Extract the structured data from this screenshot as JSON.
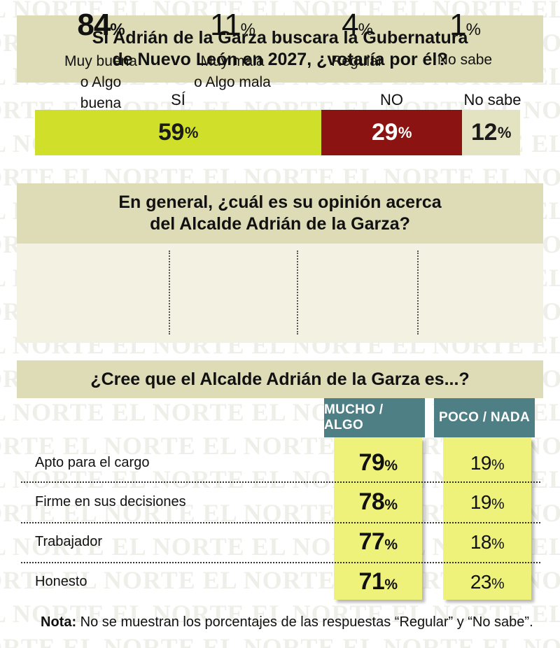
{
  "watermark": "EL NORTE",
  "q1": {
    "line1": "Si Adrián de la Garza buscara la Gubernatura",
    "line2": "de Nuevo León en 2027, ¿votaría por él?",
    "pct_symbol": "%"
  },
  "q2": {
    "line1": "En general, ¿cuál es su opinión acerca",
    "line2": "del Alcalde Adrián de la Garza?",
    "items": [
      {
        "value": "84",
        "line1": "Muy buena",
        "line2": "o Algo buena"
      },
      {
        "value": "11",
        "line1": "Muy mala",
        "line2": "o Algo mala"
      },
      {
        "value": "4",
        "line1": "Regular",
        "line2": ""
      },
      {
        "value": "1",
        "line1": "No sabe",
        "line2": ""
      }
    ]
  },
  "q3": {
    "title": "¿Cree que el Alcalde Adrián de la Garza es...?",
    "columns": [
      "MUCHO / ALGO",
      "POCO / NADA"
    ],
    "rows": [
      {
        "label": "Apto para el cargo",
        "mucho": "79",
        "poco": "19"
      },
      {
        "label": "Firme en sus decisiones",
        "mucho": "78",
        "poco": "19"
      },
      {
        "label": "Trabajador",
        "mucho": "77",
        "poco": "18"
      },
      {
        "label": "Honesto",
        "mucho": "71",
        "poco": "23"
      }
    ]
  },
  "note": {
    "label": "Nota:",
    "text": " No se muestran los porcentajes de las respuestas “Regular” y “No sabe”."
  },
  "chart_data": [
    {
      "type": "bar",
      "title": "Si Adrián de la Garza buscara la Gubernatura de Nuevo León en 2027, ¿votaría por él?",
      "categories": [
        "SÍ",
        "NO",
        "No sabe"
      ],
      "values": [
        59,
        29,
        12
      ],
      "colors": [
        "#cfdf2a",
        "#8b1413",
        "#e4e3c1"
      ]
    },
    {
      "type": "table",
      "title": "En general, ¿cuál es su opinión acerca del Alcalde Adrián de la Garza?",
      "categories": [
        "Muy buena o Algo buena",
        "Muy mala o Algo mala",
        "Regular",
        "No sabe"
      ],
      "values": [
        84,
        11,
        4,
        1
      ]
    },
    {
      "type": "table",
      "title": "¿Cree que el Alcalde Adrián de la Garza es...?",
      "categories": [
        "Apto para el cargo",
        "Firme en sus decisiones",
        "Trabajador",
        "Honesto"
      ],
      "series": [
        {
          "name": "MUCHO / ALGO",
          "values": [
            79,
            78,
            77,
            71
          ]
        },
        {
          "name": "POCO / NADA",
          "values": [
            19,
            19,
            18,
            23
          ]
        }
      ]
    }
  ]
}
